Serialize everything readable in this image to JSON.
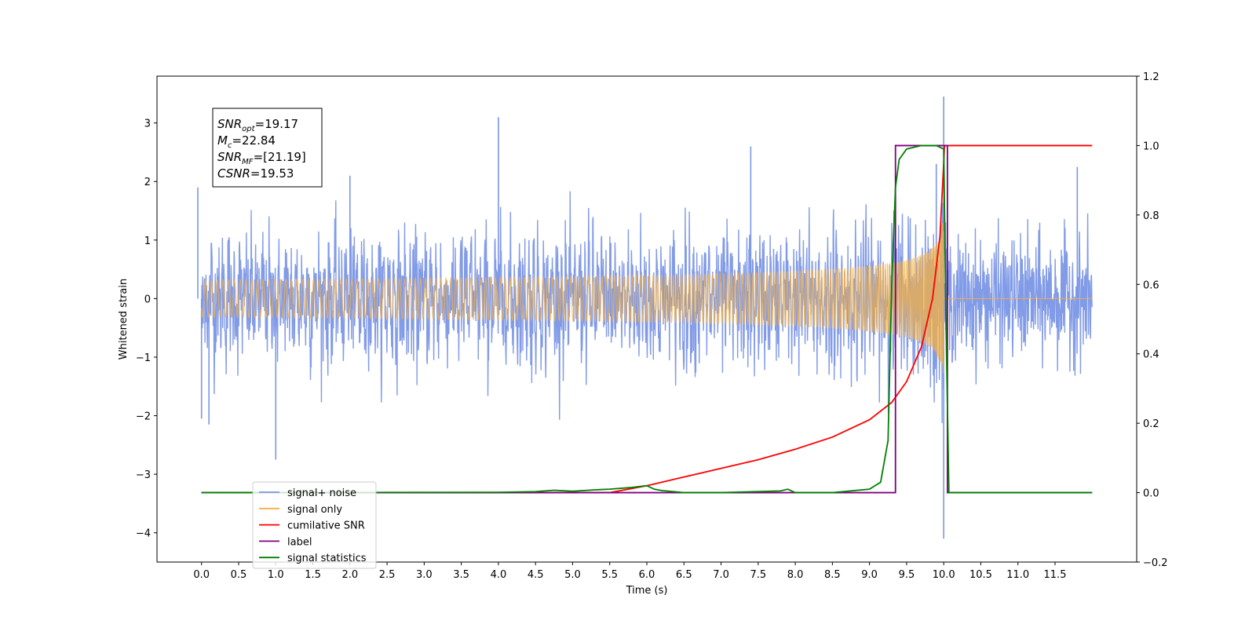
{
  "chart_data": {
    "type": "line",
    "xlabel": "Time (s)",
    "ylabel_left": "Whitened strain",
    "ylabel_right": "",
    "xlim": [
      -0.6,
      12.6
    ],
    "ylim_left": [
      -4.5,
      3.8
    ],
    "ylim_right": [
      -0.2,
      1.2
    ],
    "x_ticks": [
      "0.0",
      "0.5",
      "1.0",
      "1.5",
      "2.0",
      "2.5",
      "3.0",
      "3.5",
      "4.0",
      "4.5",
      "5.0",
      "5.5",
      "6.0",
      "6.5",
      "7.0",
      "7.5",
      "8.0",
      "8.5",
      "9.0",
      "9.5",
      "10.0",
      "10.5",
      "11.0",
      "11.5"
    ],
    "y_ticks_left": [
      "3",
      "2",
      "1",
      "0",
      "−1",
      "−2",
      "−3",
      "−4"
    ],
    "y_ticks_right": [
      "1.2",
      "1.0",
      "0.8",
      "0.6",
      "0.4",
      "0.2",
      "0.0",
      "−0.2"
    ],
    "grid": false,
    "legend_position": "lower-left",
    "annotation": {
      "snr_opt": {
        "main": "SNR",
        "sub": "opt",
        "value": "=19.17"
      },
      "mc": {
        "main": "M",
        "sub": "c",
        "value": "=22.84"
      },
      "snr_mf": {
        "main": "SNR",
        "sub": "MF",
        "value": "=[21.19]"
      },
      "csnr": {
        "main": "CSNR",
        "sub": "",
        "value": "=19.53"
      }
    },
    "series": [
      {
        "name": "signal+ noise",
        "axis": "left",
        "color": "#7b96e6",
        "description_values": {
          "x_range": [
            0.0,
            12.0
          ],
          "noise_std": 0.5,
          "spikes": [
            {
              "x": -0.05,
              "y": 1.9
            },
            {
              "x": 0.0,
              "y": -2.05
            },
            {
              "x": 0.1,
              "y": -2.15
            },
            {
              "x": 1.0,
              "y": -2.75
            },
            {
              "x": 2.0,
              "y": 2.1
            },
            {
              "x": 4.0,
              "y": 3.1
            },
            {
              "x": 7.4,
              "y": 2.6
            },
            {
              "x": 9.9,
              "y": 2.3
            },
            {
              "x": 10.0,
              "y": 3.45
            },
            {
              "x": 10.0,
              "y": -4.1
            },
            {
              "x": 11.8,
              "y": 2.25
            }
          ]
        }
      },
      {
        "name": "signal only",
        "axis": "left",
        "color": "#f5b041",
        "chirp": {
          "t_merge": 10.0,
          "amp_at_merge": 1.5
        }
      },
      {
        "name": "cumilative SNR",
        "axis": "right",
        "color": "#ff0000",
        "x": [
          5.5,
          6.0,
          6.5,
          7.0,
          7.5,
          8.0,
          8.5,
          9.0,
          9.3,
          9.5,
          9.7,
          9.85,
          9.95,
          10.0,
          10.01,
          12.0
        ],
        "y": [
          0.0,
          0.02,
          0.045,
          0.07,
          0.095,
          0.125,
          0.16,
          0.21,
          0.26,
          0.32,
          0.42,
          0.56,
          0.74,
          0.95,
          1.0,
          1.0
        ]
      },
      {
        "name": "label",
        "axis": "right",
        "color": "#800080",
        "x": [
          0.0,
          9.35,
          9.35,
          10.05,
          10.05,
          12.0
        ],
        "y": [
          0.0,
          0.0,
          1.0,
          1.0,
          0.0,
          0.0
        ]
      },
      {
        "name": "signal statistics",
        "axis": "right",
        "color": "#008000",
        "x": [
          0.0,
          4.0,
          4.5,
          4.75,
          5.0,
          5.3,
          5.5,
          5.8,
          6.0,
          6.1,
          6.2,
          6.5,
          7.0,
          7.8,
          7.9,
          8.0,
          8.5,
          9.0,
          9.15,
          9.25,
          9.3,
          9.35,
          9.4,
          9.5,
          9.7,
          9.9,
          10.0,
          10.03,
          10.07,
          12.0
        ],
        "y": [
          0.0,
          0.001,
          0.003,
          0.007,
          0.004,
          0.008,
          0.01,
          0.015,
          0.02,
          0.01,
          0.006,
          0.0,
          0.0,
          0.005,
          0.01,
          0.0,
          0.0,
          0.01,
          0.03,
          0.15,
          0.6,
          0.88,
          0.96,
          0.99,
          1.0,
          1.0,
          0.99,
          0.5,
          0.0,
          0.0
        ]
      }
    ],
    "legend": [
      {
        "label": "signal+ noise",
        "color": "#7b96e6"
      },
      {
        "label": "signal only",
        "color": "#f5b041"
      },
      {
        "label": "cumilative SNR",
        "color": "#ff0000"
      },
      {
        "label": "label",
        "color": "#800080"
      },
      {
        "label": "signal statistics",
        "color": "#008000"
      }
    ]
  }
}
